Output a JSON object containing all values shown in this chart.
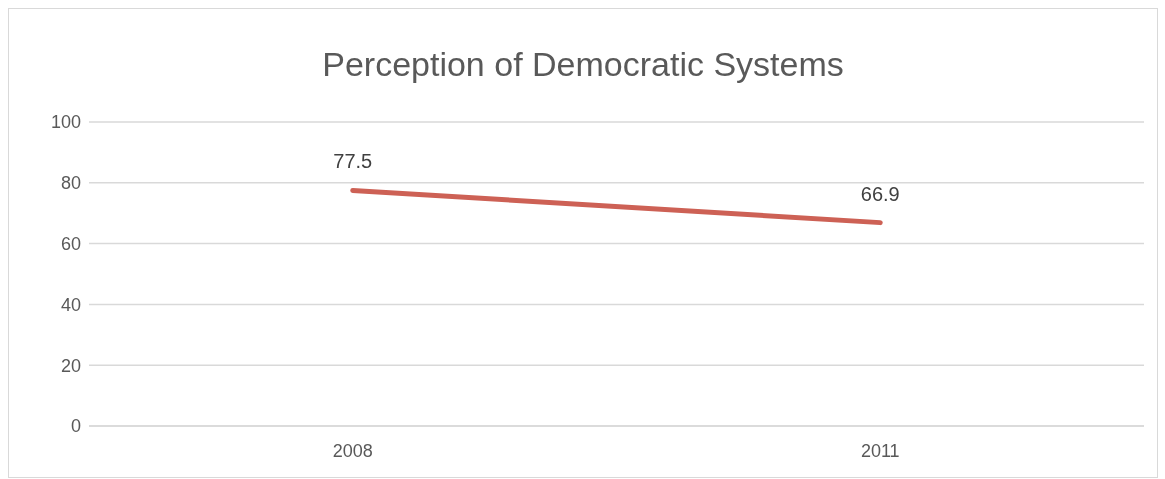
{
  "chart_data": {
    "type": "line",
    "title": "Perception of Democratic Systems",
    "categories": [
      "2008",
      "2011"
    ],
    "series": [
      {
        "color": "#cd6155",
        "values": [
          77.5,
          66.9
        ]
      }
    ],
    "ylim": [
      0,
      100
    ],
    "yticks": [
      0,
      20,
      40,
      60,
      80,
      100
    ],
    "grid": "y",
    "data_labels": true,
    "marker": "none"
  }
}
